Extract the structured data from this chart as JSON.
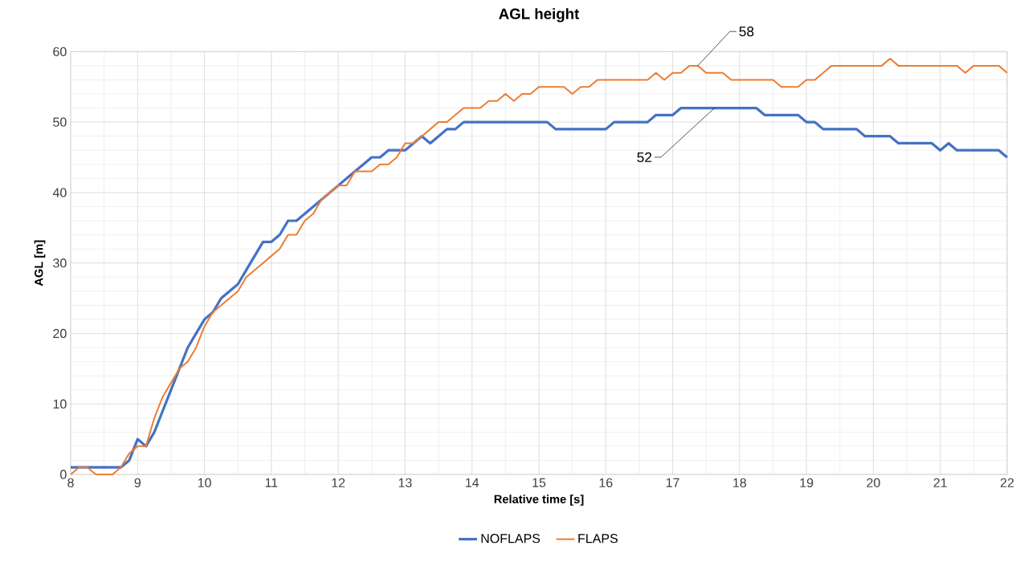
{
  "chart_data": {
    "type": "line",
    "title": "AGL height",
    "xlabel": "Relative time [s]",
    "ylabel": "AGL [m]",
    "x": [
      8,
      8.125,
      8.25,
      8.375,
      8.5,
      8.625,
      8.75,
      8.875,
      9,
      9.125,
      9.25,
      9.375,
      9.5,
      9.625,
      9.75,
      9.875,
      10,
      10.125,
      10.25,
      10.375,
      10.5,
      10.625,
      10.75,
      10.875,
      11,
      11.125,
      11.25,
      11.375,
      11.5,
      11.625,
      11.75,
      11.875,
      12,
      12.125,
      12.25,
      12.375,
      12.5,
      12.625,
      12.75,
      12.875,
      13,
      13.125,
      13.25,
      13.375,
      13.5,
      13.625,
      13.75,
      13.875,
      14,
      14.125,
      14.25,
      14.375,
      14.5,
      14.625,
      14.75,
      14.875,
      15,
      15.125,
      15.25,
      15.375,
      15.5,
      15.625,
      15.75,
      15.875,
      16,
      16.125,
      16.25,
      16.375,
      16.5,
      16.625,
      16.75,
      16.875,
      17,
      17.125,
      17.25,
      17.375,
      17.5,
      17.625,
      17.75,
      17.875,
      18,
      18.125,
      18.25,
      18.375,
      18.5,
      18.625,
      18.75,
      18.875,
      19,
      19.125,
      19.25,
      19.375,
      19.5,
      19.625,
      19.75,
      19.875,
      20,
      20.125,
      20.25,
      20.375,
      20.5,
      20.625,
      20.75,
      20.875,
      21,
      21.125,
      21.25,
      21.375,
      21.5,
      21.625,
      21.75,
      21.875,
      22
    ],
    "series": [
      {
        "name": "NOFLAPS",
        "color": "#4472c4",
        "values": [
          1,
          1,
          1,
          1,
          1,
          1,
          1,
          2,
          5,
          4,
          6,
          9,
          12,
          15,
          18,
          20,
          22,
          23,
          25,
          26,
          27,
          29,
          31,
          33,
          33,
          34,
          36,
          36,
          37,
          38,
          39,
          40,
          41,
          42,
          43,
          44,
          45,
          45,
          46,
          46,
          46,
          47,
          48,
          47,
          48,
          49,
          49,
          50,
          50,
          50,
          50,
          50,
          50,
          50,
          50,
          50,
          50,
          50,
          49,
          49,
          49,
          49,
          49,
          49,
          49,
          50,
          50,
          50,
          50,
          50,
          51,
          51,
          51,
          52,
          52,
          52,
          52,
          52,
          52,
          52,
          52,
          52,
          52,
          51,
          51,
          51,
          51,
          51,
          50,
          50,
          49,
          49,
          49,
          49,
          49,
          48,
          48,
          48,
          48,
          47,
          47,
          47,
          47,
          47,
          46,
          47,
          46,
          46,
          46,
          46,
          46,
          46,
          45
        ]
      },
      {
        "name": "FLAPS",
        "color": "#ed7d31",
        "values": [
          0,
          1,
          1,
          0,
          0,
          0,
          1,
          3,
          4,
          4,
          8,
          11,
          13,
          15,
          16,
          18,
          21,
          23,
          24,
          25,
          26,
          28,
          29,
          30,
          31,
          32,
          34,
          34,
          36,
          37,
          39,
          40,
          41,
          41,
          43,
          43,
          43,
          44,
          44,
          45,
          47,
          47,
          48,
          49,
          50,
          50,
          51,
          52,
          52,
          52,
          53,
          53,
          54,
          53,
          54,
          54,
          55,
          55,
          55,
          55,
          54,
          55,
          55,
          56,
          56,
          56,
          56,
          56,
          56,
          56,
          57,
          56,
          57,
          57,
          58,
          58,
          57,
          57,
          57,
          56,
          56,
          56,
          56,
          56,
          56,
          55,
          55,
          55,
          56,
          56,
          57,
          58,
          58,
          58,
          58,
          58,
          58,
          58,
          59,
          58,
          58,
          58,
          58,
          58,
          58,
          58,
          58,
          57,
          58,
          58,
          58,
          58,
          57
        ]
      }
    ],
    "xlim": [
      8,
      22
    ],
    "ylim": [
      0,
      60
    ],
    "xticks": [
      8,
      9,
      10,
      11,
      12,
      13,
      14,
      15,
      16,
      17,
      18,
      19,
      20,
      21,
      22
    ],
    "yticks": [
      0,
      10,
      20,
      30,
      40,
      50,
      60
    ],
    "grid": true,
    "legend": "bottom",
    "marker": "none",
    "line_style": "solid",
    "annotations": [
      {
        "text": "58",
        "x": 17.375,
        "y": 58
      },
      {
        "text": "52",
        "x": 17.625,
        "y": 52
      }
    ]
  }
}
